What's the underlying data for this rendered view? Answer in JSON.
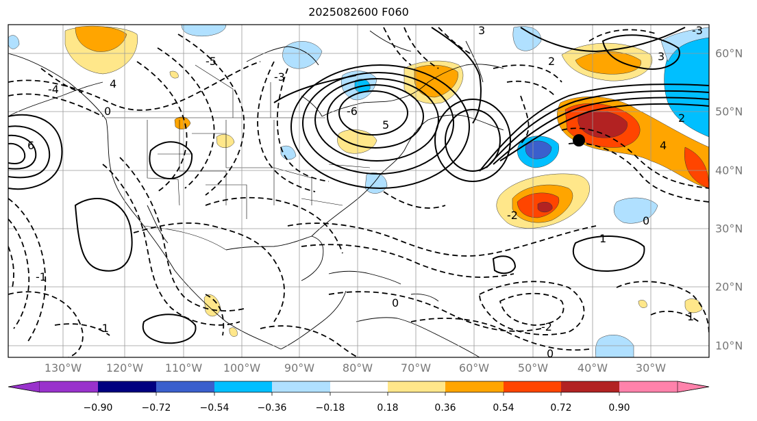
{
  "title": "2025082600 F060",
  "lon_labels": [
    "130°W",
    "120°W",
    "110°W",
    "100°W",
    "90°W",
    "80°W",
    "70°W",
    "60°W",
    "50°W",
    "40°W",
    "30°W"
  ],
  "lat_labels": [
    "60°N",
    "50°N",
    "40°N",
    "30°N",
    "20°N",
    "10°N"
  ],
  "colorbar": {
    "ticks": [
      "−0.90",
      "−0.72",
      "−0.54",
      "−0.36",
      "−0.18",
      "0.18",
      "0.36",
      "0.54",
      "0.72",
      "0.90"
    ],
    "colors": [
      "#9932cc",
      "#000080",
      "#3a5fcd",
      "#00bfff",
      "#b0e0ff",
      "#ffffff",
      "#ffe78a",
      "#ffa500",
      "#ff4500",
      "#b22222",
      "#ff82ab"
    ]
  },
  "contour_labels": [
    "3",
    "3",
    "2",
    "1",
    "0",
    "-1",
    "-2",
    "-3",
    "4",
    "-4",
    "6",
    "-6",
    "5",
    "-5"
  ],
  "marker": "black-dot",
  "grid": true
}
